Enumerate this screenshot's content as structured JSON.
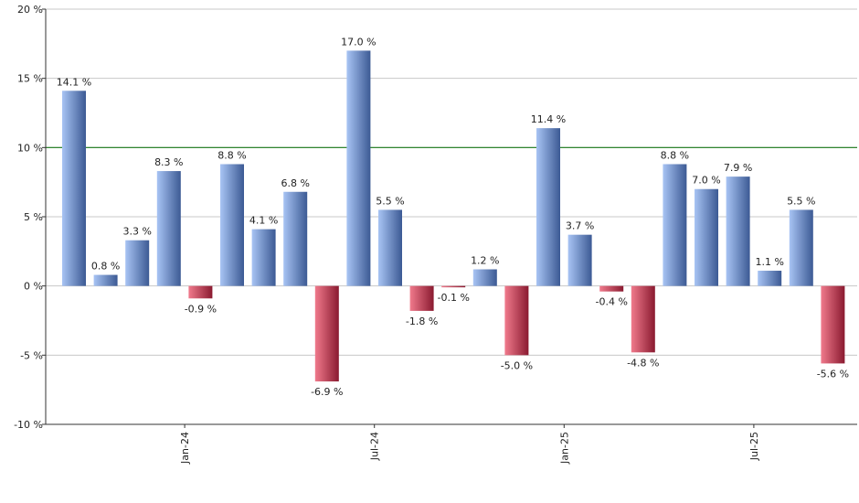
{
  "chart_data": {
    "type": "bar",
    "ylim": [
      -10,
      20
    ],
    "yticks": [
      20,
      15,
      10,
      5,
      0,
      -5,
      -10
    ],
    "ytick_labels": [
      "20 %",
      "15 %",
      "10 %",
      "5 %",
      "0 %",
      "-5 %",
      "-10 %"
    ],
    "grid": true,
    "reference_line": {
      "value": 10,
      "color": "#1a7a1a"
    },
    "x_tick_labels": [
      {
        "label": "Jan-24",
        "at_index": 3.5
      },
      {
        "label": "Jul-24",
        "at_index": 9.5
      },
      {
        "label": "Jan-25",
        "at_index": 15.5
      },
      {
        "label": "Jul-25",
        "at_index": 21.5
      }
    ],
    "values": [
      14.1,
      0.8,
      3.3,
      8.3,
      -0.9,
      8.8,
      4.1,
      6.8,
      -6.9,
      17.0,
      5.5,
      -1.8,
      -0.1,
      1.2,
      -5.0,
      11.4,
      3.7,
      -0.4,
      -4.8,
      8.8,
      7.0,
      7.9,
      1.1,
      5.5,
      -5.6
    ],
    "value_labels": [
      "14.1 %",
      "0.8 %",
      "3.3 %",
      "8.3 %",
      "-0.9 %",
      "8.8 %",
      "4.1 %",
      "6.8 %",
      "-6.9 %",
      "17.0 %",
      "5.5 %",
      "-1.8 %",
      "-0.1 %",
      "1.2 %",
      "-5.0 %",
      "11.4 %",
      "3.7 %",
      "-0.4 %",
      "-4.8 %",
      "8.8 %",
      "7.0 %",
      "7.9 %",
      "1.1 %",
      "5.5 %",
      "-5.6 %"
    ],
    "colors": {
      "positive_light": "#a8c4f4",
      "positive_dark": "#3c5a94",
      "negative_light": "#f07a8c",
      "negative_dark": "#8a1a30",
      "grid": "#c8c8c8",
      "axis": "#333333"
    }
  }
}
